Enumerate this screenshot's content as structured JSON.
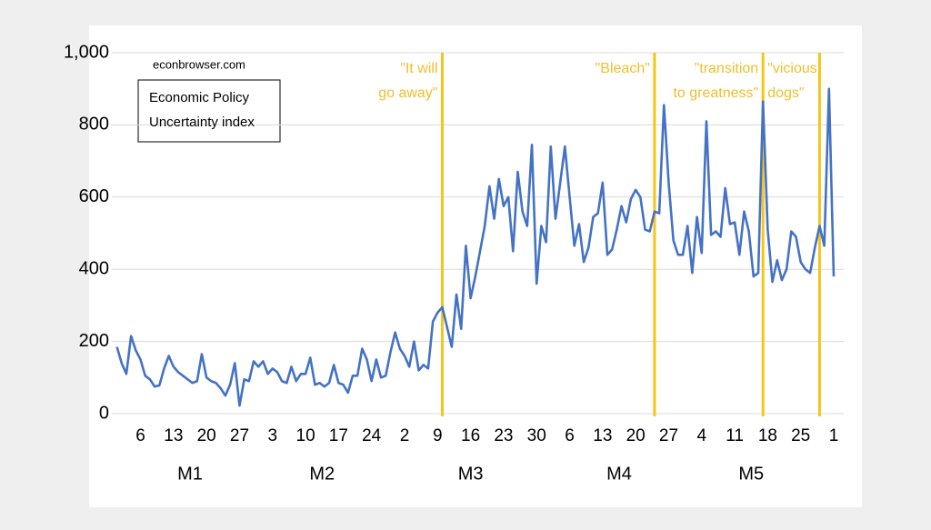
{
  "chart_data": {
    "type": "line",
    "source": "econbrowser.com",
    "categories": [
      null,
      null,
      null,
      null,
      null,
      "6",
      null,
      null,
      null,
      null,
      null,
      null,
      "13",
      null,
      null,
      null,
      null,
      null,
      null,
      "20",
      null,
      null,
      null,
      null,
      null,
      null,
      "27",
      null,
      null,
      null,
      null,
      null,
      null,
      "3",
      null,
      null,
      null,
      null,
      null,
      null,
      "10",
      null,
      null,
      null,
      null,
      null,
      null,
      "17",
      null,
      null,
      null,
      null,
      null,
      null,
      "24",
      null,
      null,
      null,
      null,
      null,
      null,
      "2",
      null,
      null,
      null,
      null,
      null,
      null,
      "9",
      null,
      null,
      null,
      null,
      null,
      null,
      "16",
      null,
      null,
      null,
      null,
      null,
      null,
      "23",
      null,
      null,
      null,
      null,
      null,
      null,
      "30",
      null,
      null,
      null,
      null,
      null,
      null,
      "6",
      null,
      null,
      null,
      null,
      null,
      null,
      "13",
      null,
      null,
      null,
      null,
      null,
      null,
      "20",
      null,
      null,
      null,
      null,
      null,
      null,
      "27",
      null,
      null,
      null,
      null,
      null,
      null,
      "4",
      null,
      null,
      null,
      null,
      null,
      null,
      "11",
      null,
      null,
      null,
      null,
      null,
      null,
      "18",
      null,
      null,
      null,
      null,
      null,
      null,
      "25",
      null,
      null,
      null,
      null,
      null,
      null,
      "1"
    ],
    "x_groups": [
      "M1",
      "M2",
      "M3",
      "M4",
      "M5"
    ],
    "series": [
      {
        "name": "Economic Policy Uncertainty index",
        "color": "#4472c4",
        "values": [
          185,
          140,
          110,
          215,
          175,
          150,
          105,
          95,
          75,
          78,
          125,
          160,
          130,
          115,
          105,
          95,
          85,
          90,
          165,
          100,
          90,
          85,
          70,
          50,
          80,
          140,
          22,
          95,
          90,
          145,
          130,
          145,
          110,
          125,
          115,
          90,
          85,
          130,
          90,
          110,
          110,
          155,
          80,
          85,
          75,
          85,
          135,
          85,
          80,
          58,
          105,
          105,
          180,
          150,
          90,
          150,
          100,
          105,
          170,
          225,
          180,
          160,
          130,
          200,
          120,
          135,
          125,
          255,
          280,
          295,
          240,
          185,
          330,
          235,
          465,
          320,
          380,
          450,
          520,
          630,
          540,
          650,
          575,
          600,
          450,
          670,
          560,
          520,
          745,
          360,
          520,
          475,
          740,
          540,
          640,
          740,
          600,
          465,
          525,
          420,
          460,
          545,
          555,
          640,
          440,
          455,
          510,
          575,
          530,
          595,
          620,
          600,
          510,
          505,
          560,
          555,
          855,
          640,
          480,
          440,
          440,
          520,
          390,
          545,
          445,
          810,
          495,
          505,
          490,
          625,
          525,
          530,
          440,
          560,
          505,
          380,
          390,
          865,
          510,
          365,
          425,
          370,
          400,
          505,
          490,
          420,
          400,
          390,
          460,
          520,
          465,
          900,
          380
        ]
      }
    ],
    "ylim": [
      0,
      1000
    ],
    "yticks": [
      0,
      200,
      400,
      600,
      800,
      {
        "value": 1000,
        "label": "1,000"
      }
    ],
    "grid": true,
    "event_lines": {
      "color": "#f5c518",
      "at": [
        69,
        114,
        137,
        149
      ]
    },
    "annotations": [
      {
        "at": 69,
        "side": "left",
        "text": [
          "\"It will",
          "go away\""
        ]
      },
      {
        "at": 114,
        "side": "left",
        "text": [
          "\"Bleach\""
        ]
      },
      {
        "at": 137,
        "side": "left",
        "text": [
          "\"transition",
          "to greatness\""
        ]
      },
      {
        "at": 137,
        "side": "right",
        "text": [
          "\"vicious",
          "dogs\""
        ]
      }
    ]
  }
}
